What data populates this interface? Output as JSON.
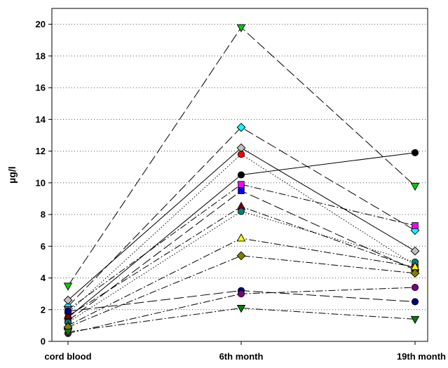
{
  "chart_data": {
    "type": "line",
    "title": "",
    "xlabel": "",
    "ylabel": "µg/l",
    "categories": [
      "cord blood",
      "6th month",
      "19th month"
    ],
    "ylim": [
      0,
      21
    ],
    "yticks": [
      0,
      2,
      4,
      6,
      8,
      10,
      12,
      14,
      16,
      18,
      20
    ],
    "grid": "horizontal-dotted",
    "series": [
      {
        "values": [
          3.5,
          19.8,
          9.8
        ],
        "marker": "triangle-down",
        "color": "#00cc00",
        "dash": "long-dash"
      },
      {
        "values": [
          2.2,
          13.5,
          7.0
        ],
        "marker": "diamond",
        "color": "#00ffff",
        "dash": "long-dash"
      },
      {
        "values": [
          2.6,
          12.2,
          5.7
        ],
        "marker": "diamond",
        "color": "#c0c0c0",
        "dash": "solid"
      },
      {
        "values": [
          1.8,
          11.8,
          4.8
        ],
        "marker": "circle",
        "color": "#ff0000",
        "dash": "dotted"
      },
      {
        "values": [
          1.5,
          10.5,
          11.9
        ],
        "marker": "circle",
        "color": "#000000",
        "dash": "solid"
      },
      {
        "values": [
          2.0,
          9.9,
          7.3
        ],
        "marker": "square",
        "color": "#ff00ff",
        "dash": "dash-dot"
      },
      {
        "values": [
          1.3,
          9.5,
          4.5
        ],
        "marker": "square",
        "color": "#0000ff",
        "dash": "long-dash"
      },
      {
        "values": [
          1.6,
          8.5,
          4.6
        ],
        "marker": "triangle-up",
        "color": "#800000",
        "dash": "dash-dot"
      },
      {
        "values": [
          1.2,
          8.2,
          5.0
        ],
        "marker": "circle",
        "color": "#008080",
        "dash": "dotted"
      },
      {
        "values": [
          1.0,
          6.5,
          4.7
        ],
        "marker": "triangle-up",
        "color": "#ffff00",
        "dash": "dash-dot"
      },
      {
        "values": [
          0.9,
          5.4,
          4.3
        ],
        "marker": "diamond",
        "color": "#808000",
        "dash": "dash-dot"
      },
      {
        "values": [
          1.9,
          3.2,
          2.5
        ],
        "marker": "circle",
        "color": "#000080",
        "dash": "long-dash"
      },
      {
        "values": [
          0.5,
          3.0,
          3.4
        ],
        "marker": "circle",
        "color": "#800080",
        "dash": "dash-dot"
      },
      {
        "values": [
          0.6,
          2.1,
          1.4
        ],
        "marker": "triangle-down",
        "color": "#008000",
        "dash": "dash-dot"
      }
    ]
  }
}
